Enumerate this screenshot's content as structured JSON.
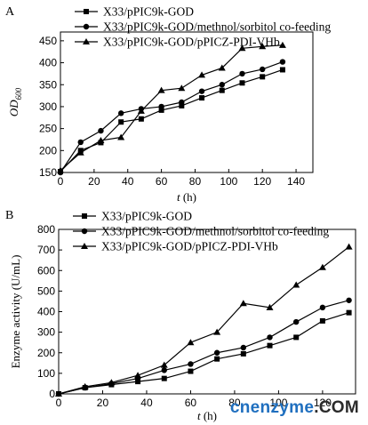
{
  "watermark": {
    "part1": "cnenzyme",
    "part2": ".COM"
  },
  "chart_data": [
    {
      "panel": "A",
      "type": "line",
      "xlabel": "t (h)",
      "ylabel_main": "OD",
      "ylabel_sub": "600",
      "xlim": [
        0,
        150
      ],
      "ylim": [
        150,
        470
      ],
      "xticks": [
        0,
        20,
        40,
        60,
        80,
        100,
        120,
        140
      ],
      "yticks": [
        150,
        200,
        250,
        300,
        350,
        400,
        450
      ],
      "legend": "top-left",
      "series": [
        {
          "name": "X33/pPIC9k-GOD",
          "marker": "square",
          "x": [
            0,
            12,
            24,
            36,
            48,
            60,
            72,
            84,
            96,
            108,
            120,
            132
          ],
          "y": [
            152,
            200,
            218,
            265,
            272,
            292,
            302,
            320,
            337,
            354,
            368,
            384
          ]
        },
        {
          "name": "X33/pPIC9k-GOD/methnol/sorbitol co-feeding",
          "marker": "circle",
          "x": [
            0,
            12,
            24,
            36,
            48,
            60,
            72,
            84,
            96,
            108,
            120,
            132
          ],
          "y": [
            150,
            219,
            245,
            285,
            295,
            300,
            310,
            335,
            350,
            375,
            385,
            402
          ]
        },
        {
          "name": "X33/pPIC9k-GOD/pPICZ-PDI-VHb",
          "marker": "triangle",
          "x": [
            0,
            12,
            24,
            36,
            48,
            60,
            72,
            84,
            96,
            108,
            120,
            132
          ],
          "y": [
            155,
            195,
            223,
            230,
            290,
            337,
            342,
            372,
            388,
            433,
            437,
            440
          ]
        }
      ]
    },
    {
      "panel": "B",
      "type": "line",
      "xlabel": "t (h)",
      "ylabel_main": "Enzyme activity (U/mL)",
      "ylabel_sub": "",
      "xlim": [
        0,
        135
      ],
      "ylim": [
        0,
        800
      ],
      "xticks": [
        0,
        20,
        40,
        60,
        80,
        100,
        120
      ],
      "yticks": [
        0,
        100,
        200,
        300,
        400,
        500,
        600,
        700,
        800
      ],
      "legend": "top",
      "series": [
        {
          "name": "X33/pPIC9k-GOD",
          "marker": "square",
          "x": [
            0,
            12,
            24,
            36,
            48,
            60,
            72,
            84,
            96,
            108,
            120,
            132
          ],
          "y": [
            0,
            30,
            45,
            60,
            75,
            110,
            170,
            195,
            235,
            275,
            355,
            395
          ]
        },
        {
          "name": "X33/pPIC9k-GOD/methnol/sorbitol co-feeding",
          "marker": "circle",
          "x": [
            0,
            12,
            24,
            36,
            48,
            60,
            72,
            84,
            96,
            108,
            120,
            132
          ],
          "y": [
            0,
            30,
            50,
            75,
            115,
            145,
            200,
            225,
            275,
            350,
            420,
            455
          ]
        },
        {
          "name": "X33/pPIC9k-GOD/pPICZ-PDI-VHb",
          "marker": "triangle",
          "x": [
            0,
            12,
            24,
            36,
            48,
            60,
            72,
            84,
            96,
            108,
            120,
            132
          ],
          "y": [
            0,
            35,
            55,
            90,
            140,
            250,
            300,
            440,
            420,
            530,
            615,
            715
          ]
        }
      ]
    }
  ]
}
